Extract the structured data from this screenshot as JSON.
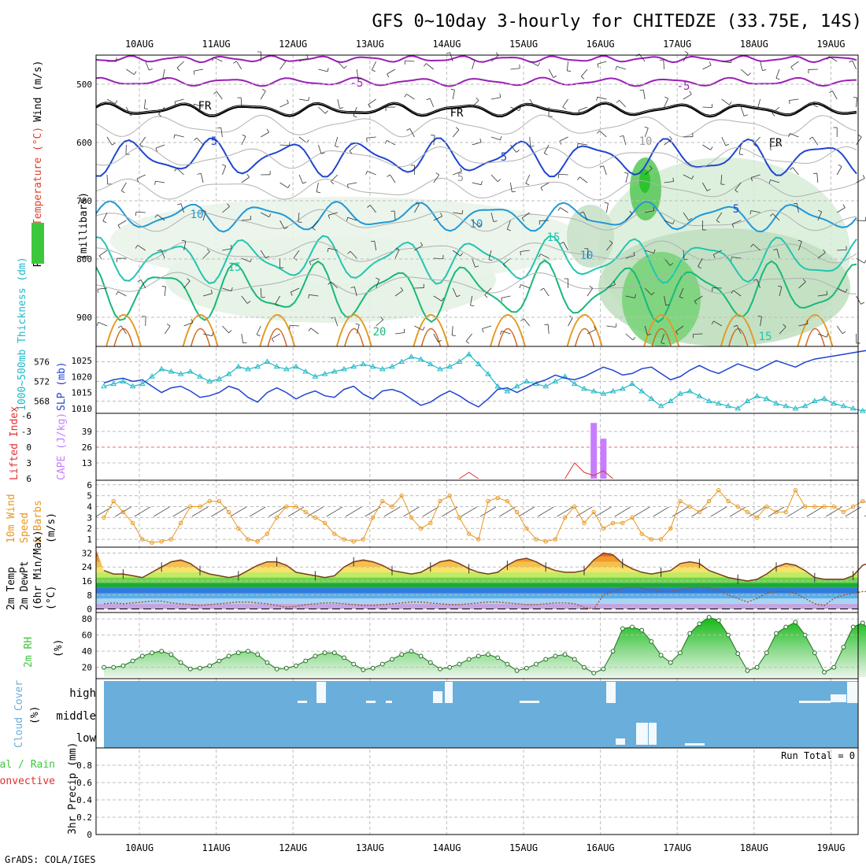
{
  "title": "GFS 0~10day 3-hourly for CHITEDZE (33.75E, 14S)",
  "footer": "GrADS: COLA/IGES",
  "chart_data": {
    "type": "meteogram",
    "location": "CHITEDZE (33.75E, 14S)",
    "dates": [
      "10AUG",
      "11AUG",
      "12AUG",
      "13AUG",
      "14AUG",
      "15AUG",
      "16AUG",
      "17AUG",
      "18AUG",
      "19AUG"
    ],
    "colors": {
      "purple": "#9a1fb5",
      "blue": "#1f45d0",
      "lightblue": "#1f98d8",
      "teal": "#22c5b0",
      "green": "#18b878",
      "orange": "#e49a22",
      "rh_green": "#3cc83c",
      "cape": "#c77dff",
      "li_red": "#e03030",
      "wind_orange": "#e8961e",
      "cloud_blue": "#6aaedb",
      "thick_cyan": "#22b8c8"
    },
    "panels": {
      "upper": {
        "ylabel_parts": [
          "RH (%)",
          "Temperature (°C)",
          "Wind (m/s)"
        ],
        "inner_label": "(millibars)",
        "pressure_ticks": [
          500,
          600,
          700,
          800,
          900
        ],
        "contour_labels": [
          "5",
          "-5",
          "-5",
          "FR",
          "FR",
          "FR",
          "5",
          "5",
          "5",
          "10",
          "10",
          "15",
          "15",
          "20",
          "15",
          "10",
          "10"
        ]
      },
      "thickness": {
        "ylabel_left": "1000~500mb Thickness (dm)",
        "ylabel_right": "SLP (mb)",
        "thickness_ticks": [
          568,
          572,
          576
        ],
        "slp_ticks": [
          1010,
          1015,
          1020,
          1025
        ],
        "thickness_series": [
          571,
          571.5,
          572,
          571,
          571.5,
          573,
          574.5,
          574,
          573.5,
          574,
          573,
          572,
          572.5,
          573.5,
          575,
          574.5,
          575,
          576,
          575,
          574.5,
          575,
          574,
          573,
          573.5,
          574,
          574.5,
          575,
          575.5,
          575,
          574.5,
          575,
          576,
          577,
          576.5,
          575.5,
          574.5,
          575,
          576,
          577.5,
          575.5,
          573.5,
          571,
          570,
          571,
          572,
          571.5,
          571,
          572,
          573,
          571.5,
          570.5,
          570,
          569.5,
          570,
          570.5,
          571.5,
          570,
          568.5,
          567,
          568,
          569.5,
          570,
          569,
          568,
          567.5,
          567,
          566.5,
          568,
          569,
          568.5,
          567.5,
          567,
          566.5,
          567,
          568,
          568.5,
          567.5,
          567,
          566.5,
          566,
          566.5,
          567
        ],
        "slp_series": [
          1018,
          1019,
          1019.5,
          1018.5,
          1019,
          1017,
          1015,
          1016.5,
          1017,
          1015.5,
          1013.5,
          1014,
          1015,
          1017,
          1016,
          1013.5,
          1012,
          1015,
          1016.5,
          1015,
          1013,
          1014.5,
          1015.5,
          1014,
          1013.5,
          1016,
          1017,
          1014.5,
          1013,
          1015.5,
          1016,
          1015,
          1013,
          1011,
          1012,
          1014,
          1015.5,
          1014,
          1012,
          1010.5,
          1013,
          1016,
          1016.5,
          1015,
          1016.5,
          1018,
          1019,
          1020.5,
          1019.5,
          1019,
          1020,
          1021.5,
          1023,
          1022,
          1020.5,
          1021,
          1022.5,
          1023,
          1021,
          1019,
          1020,
          1022,
          1023.5,
          1022,
          1021,
          1022.5,
          1024,
          1023,
          1022,
          1023.5,
          1025,
          1024,
          1023,
          1024.5,
          1025.5,
          1026,
          1026.5,
          1027,
          1027.5,
          1028,
          1028.5,
          1029
        ]
      },
      "cape": {
        "ylabel_left": "Lifted Index",
        "ylabel_right": "CAPE (J/kg)",
        "li_ticks": [
          "6",
          "3",
          "0",
          "-3",
          "-6"
        ],
        "cape_ticks": [
          13,
          26,
          39
        ],
        "cape_bars": [
          {
            "t": 51,
            "value": 46
          },
          {
            "t": 52,
            "value": 33
          }
        ]
      },
      "wind": {
        "ylabel_parts": [
          "10m Wind",
          "Speed",
          "& Barbs",
          "(m/s)"
        ],
        "ticks": [
          1,
          2,
          3,
          4,
          5,
          6
        ],
        "speed_series": [
          3,
          4.5,
          3.5,
          2.5,
          1,
          0.7,
          0.8,
          1,
          2.5,
          4,
          4,
          4.5,
          4.5,
          3.5,
          2,
          1,
          0.8,
          1.5,
          3,
          4,
          4,
          3.5,
          3,
          2.5,
          1.5,
          1,
          0.8,
          1,
          3,
          4.5,
          4,
          5,
          3,
          2,
          2.5,
          4.5,
          5,
          3,
          1.5,
          1,
          4.5,
          4.8,
          4.5,
          3.5,
          2,
          1,
          0.8,
          1,
          3,
          4,
          2.5,
          3.5,
          2,
          2.5,
          2.5,
          3,
          1.5,
          1,
          1,
          2,
          4.5,
          4,
          3.5,
          4.5,
          5.5,
          4.5,
          4,
          3.5,
          3,
          4,
          3.5,
          3.5,
          5.5,
          4,
          4,
          4,
          4,
          3.5,
          4,
          4.5,
          4.2,
          4.5,
          5,
          4.5
        ]
      },
      "temp": {
        "ylabel_parts": [
          "2m Temp",
          "2m DewPt",
          "(6hr Min/Max)",
          "(°C)"
        ],
        "ticks": [
          0,
          8,
          16,
          24,
          32
        ],
        "temp_series": [
          22,
          20,
          20,
          19,
          18,
          21,
          24,
          27,
          28,
          26,
          22,
          20,
          19,
          18,
          19,
          22,
          25,
          27,
          27,
          25,
          21,
          20,
          19,
          18,
          19,
          24,
          27,
          28,
          27,
          25,
          22,
          21,
          20,
          21,
          24,
          27,
          28,
          26,
          23,
          21,
          20,
          21,
          25,
          28,
          29,
          27,
          24,
          22,
          21,
          21,
          22,
          28,
          32,
          31,
          26,
          23,
          21,
          20,
          21,
          22,
          26,
          27,
          26,
          22,
          20,
          18,
          17,
          16,
          17,
          20,
          24,
          26,
          25,
          22,
          18,
          17,
          17,
          17,
          19,
          25,
          27
        ],
        "dew_series": [
          3,
          3.5,
          3,
          3.5,
          4,
          4.5,
          4.5,
          3.5,
          3,
          2.5,
          2,
          2.5,
          3,
          3.5,
          4,
          4,
          3.5,
          3,
          2,
          1,
          1.5,
          2.5,
          3,
          3.5,
          3.5,
          3,
          2.5,
          2,
          2,
          2.5,
          3,
          3.5,
          4,
          4,
          3.5,
          3,
          2.5,
          2.5,
          3,
          3.5,
          4,
          4,
          3.5,
          3,
          2.5,
          2.5,
          3,
          3.5,
          3.5,
          3,
          1,
          0,
          8,
          10,
          12,
          12.5,
          12,
          11,
          10,
          10,
          11,
          12,
          12.5,
          12,
          11,
          8,
          6,
          4,
          6,
          9,
          10,
          10,
          9,
          6,
          3,
          2,
          6,
          8,
          9,
          10,
          10
        ],
        "temp_bands": [
          {
            "from": 0,
            "to": 3,
            "color": "#c3a6e0"
          },
          {
            "from": 3,
            "to": 6,
            "color": "#a9d4f5"
          },
          {
            "from": 6,
            "to": 9,
            "color": "#5aaeea"
          },
          {
            "from": 9,
            "to": 12,
            "color": "#2f7be0"
          },
          {
            "from": 12,
            "to": 15,
            "color": "#1fa83c"
          },
          {
            "from": 15,
            "to": 18,
            "color": "#6fd44a"
          },
          {
            "from": 18,
            "to": 21,
            "color": "#c3ea64"
          },
          {
            "from": 21,
            "to": 24,
            "color": "#f7e26a"
          },
          {
            "from": 24,
            "to": 27,
            "color": "#f6c04a"
          },
          {
            "from": 27,
            "to": 30,
            "color": "#ef9a2a"
          },
          {
            "from": 30,
            "to": 33,
            "color": "#e2681e"
          }
        ]
      },
      "rh": {
        "ylabel_parts": [
          "2m RH",
          "(%)"
        ],
        "ticks": [
          20,
          40,
          60,
          80
        ],
        "rh_series": [
          20,
          20,
          22,
          28,
          34,
          38,
          40,
          36,
          26,
          18,
          19,
          22,
          28,
          34,
          38,
          40,
          36,
          26,
          18,
          19,
          22,
          28,
          34,
          38,
          38,
          32,
          24,
          17,
          19,
          24,
          30,
          36,
          40,
          34,
          26,
          18,
          20,
          24,
          30,
          34,
          36,
          32,
          24,
          16,
          19,
          24,
          30,
          34,
          36,
          30,
          20,
          13,
          18,
          40,
          68,
          70,
          66,
          52,
          35,
          26,
          38,
          62,
          74,
          82,
          78,
          60,
          37,
          16,
          20,
          38,
          62,
          70,
          76,
          60,
          38,
          14,
          20,
          45,
          70,
          75,
          62
        ]
      },
      "cloud": {
        "ylabel_parts": [
          "Cloud Cover",
          "(%)"
        ],
        "levels": [
          "high",
          "middle",
          "low"
        ]
      },
      "precip": {
        "ylabel_parts": [
          "Total / Rain",
          "Convective",
          "3hr Precip (mm)"
        ],
        "ticks": [
          "0",
          "0.2",
          "0.4",
          "0.6",
          "0.8"
        ],
        "run_total": "Run Total = 0"
      }
    }
  }
}
